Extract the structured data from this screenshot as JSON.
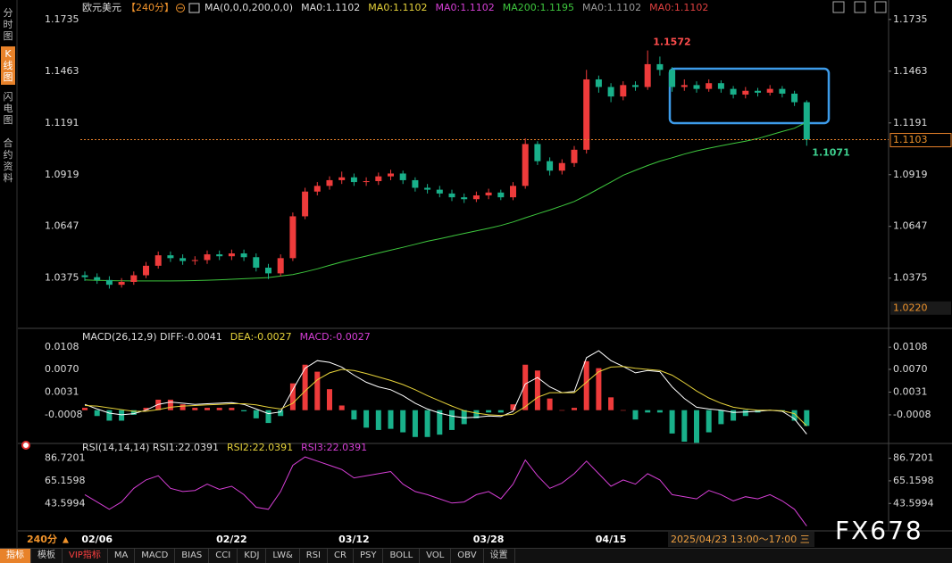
{
  "sidebar": {
    "tabs": [
      "分时图",
      "K线图",
      "闪电图",
      "合约资料"
    ],
    "active": 1
  },
  "toolbar": [
    "指标",
    "模板",
    "VIP指标",
    "MA",
    "MACD",
    "BIAS",
    "CCI",
    "KDJ",
    "LW&",
    "RSI",
    "CR",
    "PSY",
    "BOLL",
    "VOL",
    "OBV",
    "设置"
  ],
  "footer": {
    "period": "240分",
    "time": "2025/04/23 13:00～17:00 三",
    "logo": "FX678"
  },
  "chart_data": [
    {
      "type": "candlestick",
      "title": "欧元美元",
      "period": "【240分】",
      "legend": [
        {
          "text": "MA(0,0,0,200,0,0)",
          "color": "#dddddd"
        },
        {
          "text": "MA0:1.1102",
          "color": "#dddddd"
        },
        {
          "text": "MA0:1.1102",
          "color": "#e6d23a"
        },
        {
          "text": "MA0:1.1102",
          "color": "#d63fd6"
        },
        {
          "text": "MA200:1.1195",
          "color": "#3ec83e"
        },
        {
          "text": "MA0:1.1102",
          "color": "#9a9a9a"
        },
        {
          "text": "MA0:1.1102",
          "color": "#e04040"
        }
      ],
      "categories": [
        null,
        "02/06",
        null,
        null,
        null,
        null,
        null,
        null,
        null,
        null,
        null,
        null,
        "02/22",
        null,
        null,
        null,
        null,
        null,
        null,
        null,
        null,
        null,
        "03/12",
        null,
        null,
        null,
        null,
        null,
        null,
        null,
        null,
        null,
        null,
        "03/28",
        null,
        null,
        null,
        null,
        null,
        null,
        null,
        null,
        null,
        "04/15",
        null,
        null,
        null,
        null,
        null,
        null,
        null,
        null,
        null,
        null,
        null,
        null,
        null,
        null,
        null,
        null
      ],
      "open": [
        1.039,
        1.038,
        1.0365,
        1.034,
        1.0355,
        1.039,
        1.044,
        1.0495,
        1.048,
        1.0465,
        1.047,
        1.05,
        1.049,
        1.0505,
        1.0485,
        1.043,
        1.04,
        1.048,
        1.07,
        1.083,
        1.086,
        1.089,
        1.0905,
        1.088,
        1.0885,
        1.091,
        1.0925,
        1.089,
        1.085,
        1.084,
        1.082,
        1.08,
        1.079,
        1.081,
        1.0825,
        1.08,
        1.086,
        1.108,
        1.099,
        1.094,
        1.098,
        1.105,
        1.142,
        1.138,
        1.133,
        1.139,
        1.138,
        1.15,
        1.147,
        1.138,
        1.139,
        1.137,
        1.14,
        1.137,
        1.134,
        1.136,
        1.135,
        1.137,
        1.1345,
        1.13
      ],
      "high": [
        1.041,
        1.04,
        1.0385,
        1.0375,
        1.041,
        1.046,
        1.0515,
        1.0515,
        1.05,
        1.049,
        1.052,
        1.052,
        1.0525,
        1.0525,
        1.0505,
        1.045,
        1.05,
        1.072,
        1.085,
        1.088,
        1.091,
        1.0935,
        1.0925,
        1.0905,
        1.093,
        1.0945,
        1.094,
        1.0905,
        1.087,
        1.086,
        1.084,
        1.082,
        1.083,
        1.0845,
        1.084,
        1.088,
        1.111,
        1.1095,
        1.101,
        1.1,
        1.107,
        1.147,
        1.144,
        1.14,
        1.141,
        1.141,
        1.1572,
        1.154,
        1.1485,
        1.142,
        1.141,
        1.142,
        1.1415,
        1.1385,
        1.138,
        1.1375,
        1.139,
        1.1385,
        1.136,
        1.131
      ],
      "low": [
        1.036,
        1.0345,
        1.032,
        1.0325,
        1.034,
        1.0375,
        1.0425,
        1.046,
        1.0445,
        1.0445,
        1.045,
        1.047,
        1.047,
        1.0465,
        1.041,
        1.037,
        1.0385,
        1.0465,
        1.0685,
        1.081,
        1.084,
        1.087,
        1.086,
        1.086,
        1.0865,
        1.089,
        1.087,
        1.083,
        1.082,
        1.08,
        1.078,
        1.077,
        1.0775,
        1.079,
        1.0785,
        1.0785,
        1.0845,
        1.097,
        1.0915,
        1.092,
        1.096,
        1.103,
        1.135,
        1.13,
        1.131,
        1.136,
        1.1365,
        1.144,
        1.1355,
        1.136,
        1.135,
        1.1355,
        1.135,
        1.132,
        1.132,
        1.133,
        1.1335,
        1.1325,
        1.128,
        1.1071
      ],
      "close": [
        1.038,
        1.0365,
        1.034,
        1.0355,
        1.039,
        1.044,
        1.0495,
        1.048,
        1.0465,
        1.047,
        1.05,
        1.049,
        1.0505,
        1.0485,
        1.043,
        1.04,
        1.048,
        1.07,
        1.083,
        1.086,
        1.089,
        1.0905,
        1.088,
        1.0885,
        1.091,
        1.0925,
        1.089,
        1.085,
        1.084,
        1.082,
        1.08,
        1.079,
        1.081,
        1.0825,
        1.08,
        1.086,
        1.108,
        1.099,
        1.094,
        1.098,
        1.105,
        1.142,
        1.138,
        1.133,
        1.139,
        1.138,
        1.15,
        1.147,
        1.138,
        1.139,
        1.137,
        1.14,
        1.137,
        1.134,
        1.136,
        1.135,
        1.137,
        1.1345,
        1.13,
        1.1103
      ],
      "up_color": "#ee3b3b",
      "down_color": "#19b08a",
      "series": [
        {
          "color": "#3ec83e",
          "values": [
            1.0365,
            1.0363,
            1.0362,
            1.0361,
            1.036,
            1.036,
            1.036,
            1.036,
            1.0361,
            1.0362,
            1.0364,
            1.0366,
            1.0369,
            1.0372,
            1.0375,
            1.0378,
            1.0386,
            1.0394,
            1.0408,
            1.0424,
            1.0442,
            1.046,
            1.0476,
            1.0491,
            1.0507,
            1.0522,
            1.0537,
            1.0553,
            1.0569,
            1.0582,
            1.0596,
            1.061,
            1.0623,
            1.0637,
            1.0652,
            1.067,
            1.0692,
            1.0713,
            1.0733,
            1.0755,
            1.0778,
            1.081,
            1.0845,
            1.088,
            1.0916,
            1.0942,
            1.0967,
            1.099,
            1.1008,
            1.1027,
            1.1044,
            1.1058,
            1.1071,
            1.1083,
            1.1095,
            1.1109,
            1.1127,
            1.1146,
            1.1163,
            1.1195
          ]
        }
      ],
      "annotations": [
        {
          "value": 1.1572,
          "color": "#ff4d4d"
        },
        {
          "value": 1.1071,
          "color": "#3ecf8e"
        }
      ],
      "last_price": 1.1103,
      "range_low": {
        "value": 1.022,
        "label": "1.0220"
      },
      "ylim": [
        1.0125,
        1.1828
      ],
      "yticks": [
        1.1735,
        1.1463,
        1.1191,
        1.0919,
        1.0647,
        1.0375
      ]
    },
    {
      "type": "macd",
      "legend": [
        {
          "text": "MACD(26,12,9) DIFF:-0.0041",
          "color": "#dddddd"
        },
        {
          "text": "DEA:-0.0027",
          "color": "#e6d23a"
        },
        {
          "text": "MACD:-0.0027",
          "color": "#d63fd6"
        }
      ],
      "series": [
        {
          "color": "#ffffff",
          "values": [
            0.001,
            0.0002,
            -0.0005,
            -0.0008,
            -0.0006,
            0.0,
            0.001,
            0.0014,
            0.0012,
            0.001,
            0.0011,
            0.0012,
            0.0013,
            0.001,
            0.0002,
            -0.0006,
            -0.0003,
            0.0035,
            0.0072,
            0.0085,
            0.0082,
            0.0074,
            0.006,
            0.0048,
            0.004,
            0.0035,
            0.0025,
            0.0012,
            0.0002,
            -0.0005,
            -0.001,
            -0.0013,
            -0.0012,
            -0.001,
            -0.0011,
            -0.0002,
            0.0045,
            0.0056,
            0.004,
            0.003,
            0.0032,
            0.009,
            0.0102,
            0.0085,
            0.0075,
            0.0064,
            0.0068,
            0.0066,
            0.004,
            0.002,
            0.0005,
            0.0002,
            0.0,
            -0.0004,
            -0.0003,
            -0.0002,
            0.0,
            -0.0002,
            -0.0015,
            -0.0041
          ]
        },
        {
          "color": "#e6d23a",
          "values": [
            0.0008,
            0.0007,
            0.0004,
            0.0001,
            -0.0002,
            -0.0002,
            0.0001,
            0.0005,
            0.0007,
            0.0008,
            0.0009,
            0.001,
            0.0011,
            0.0011,
            0.0009,
            0.0005,
            0.0002,
            0.0012,
            0.0033,
            0.0052,
            0.0064,
            0.007,
            0.0068,
            0.0063,
            0.0057,
            0.0051,
            0.0044,
            0.0035,
            0.0025,
            0.0016,
            0.0007,
            -0.0001,
            -0.0005,
            -0.0008,
            -0.0009,
            -0.0007,
            0.0006,
            0.0022,
            0.003,
            0.003,
            0.003,
            0.0048,
            0.0066,
            0.0074,
            0.0075,
            0.0072,
            0.007,
            0.0068,
            0.006,
            0.0047,
            0.0033,
            0.0021,
            0.0012,
            0.0005,
            0.0002,
            0.0,
            0.0,
            -0.0001,
            -0.0006,
            -0.0027
          ]
        }
      ],
      "histogram": {
        "up_color": "#ee3b3b",
        "down_color": "#19b08a",
        "values": [
          0.0004,
          -0.001,
          -0.0018,
          -0.0018,
          -0.0008,
          0.0004,
          0.0018,
          0.0018,
          0.001,
          0.0004,
          0.0004,
          0.0004,
          0.0004,
          -0.0002,
          -0.0014,
          -0.0022,
          -0.001,
          0.0046,
          0.0078,
          0.0066,
          0.0036,
          0.0008,
          -0.0016,
          -0.003,
          -0.0034,
          -0.0032,
          -0.0038,
          -0.0046,
          -0.0046,
          -0.0042,
          -0.0034,
          -0.0024,
          -0.0014,
          -0.0004,
          -0.0004,
          0.001,
          0.0078,
          0.0068,
          0.002,
          0.0,
          0.0004,
          0.0084,
          0.0072,
          0.0022,
          0.0,
          -0.0016,
          -0.0004,
          -0.0004,
          -0.004,
          -0.0054,
          -0.0056,
          -0.0038,
          -0.0024,
          -0.0018,
          -0.001,
          -0.0004,
          0.0,
          -0.0002,
          -0.0018,
          -0.0027
        ]
      },
      "ylim": [
        -0.0054,
        0.0122
      ],
      "yticks": [
        0.0108,
        {
          "value": 0.007,
          "label": "0.0070"
        },
        0.0031,
        -0.0008
      ]
    },
    {
      "type": "line",
      "legend": [
        {
          "text": "RSI(14,14,14) RSI1:22.0391",
          "color": "#dddddd"
        },
        {
          "text": "RSI2:22.0391",
          "color": "#e6d23a"
        },
        {
          "text": "RSI3:22.0391",
          "color": "#d63fd6"
        }
      ],
      "series": [
        {
          "color": "#d63fd6",
          "values": [
            52,
            45,
            38,
            45,
            58,
            66,
            70,
            58,
            55,
            56,
            62,
            57,
            60,
            52,
            40,
            38,
            55,
            80,
            88,
            84,
            80,
            76,
            68,
            70,
            72,
            74,
            62,
            55,
            52,
            48,
            44,
            45,
            52,
            55,
            48,
            62,
            85,
            70,
            58,
            63,
            72,
            84,
            72,
            60,
            66,
            62,
            72,
            66,
            52,
            50,
            48,
            56,
            52,
            46,
            50,
            48,
            52,
            46,
            38,
            22.0391
          ]
        }
      ],
      "ylim": [
        20,
        94
      ],
      "yticks": [
        86.7201,
        65.1598,
        43.5994
      ]
    }
  ]
}
